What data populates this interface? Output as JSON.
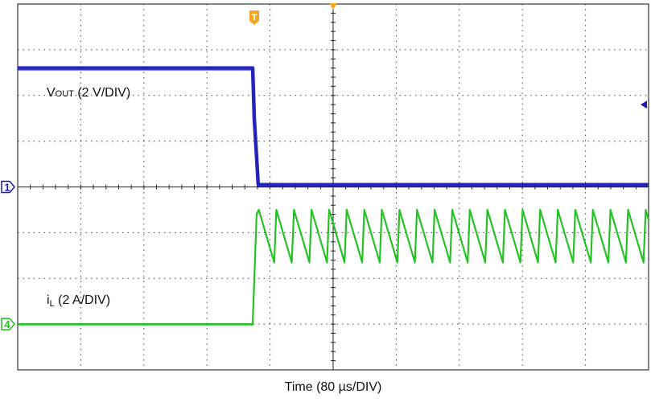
{
  "chart_data": {
    "type": "line",
    "title": "",
    "xlabel": "Time (80 µs/DIV)",
    "x_unit": "µs",
    "x_per_div": 80,
    "x_divisions": 10,
    "y_divisions": 8,
    "xlim": [
      0,
      800
    ],
    "grid": true,
    "trigger_marker": "T",
    "trigger_time": 300,
    "series": [
      {
        "name": "VOUT (2 V/DIV)",
        "label_main": "V",
        "label_sub": "OUT",
        "label_rest": " (2 V/DIV)",
        "channel": "1",
        "color": "#1a1ab8",
        "scale_per_div": 2,
        "unit": "V",
        "x": [
          0,
          298,
          300,
          305,
          800
        ],
        "y": [
          5.2,
          5.2,
          3.0,
          0.1,
          0.1
        ]
      },
      {
        "name": "iL (2 A/DIV)",
        "label_main": "i",
        "label_sub": "L",
        "label_rest": " (2 A/DIV)",
        "channel": "4",
        "color": "#1fbf1f",
        "scale_per_div": 2,
        "unit": "A",
        "x": [
          0,
          298,
          303,
          800
        ],
        "y": [
          0.0,
          0.0,
          4.8,
          4.8
        ],
        "ripple": {
          "start": 303,
          "period": 22.3,
          "peak": 5.0,
          "valley": 2.7
        }
      }
    ]
  }
}
